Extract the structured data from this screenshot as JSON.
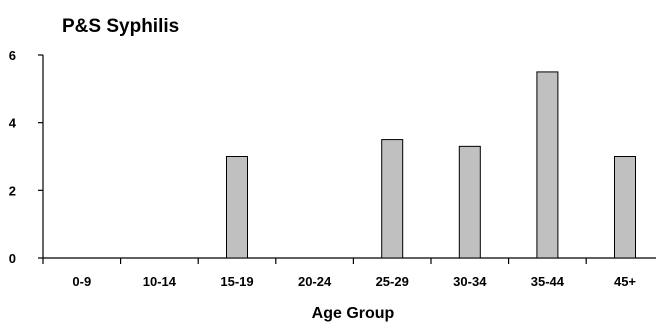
{
  "chart_data": {
    "type": "bar",
    "title": "P&S Syphilis",
    "xlabel": "Age Group",
    "ylabel": "",
    "categories": [
      "0-9",
      "10-14",
      "15-19",
      "20-24",
      "25-29",
      "30-34",
      "35-44",
      "45+"
    ],
    "values": [
      0,
      0,
      3.0,
      0,
      3.5,
      3.3,
      5.5,
      3.0
    ],
    "ylim": [
      0,
      6
    ],
    "yticks": [
      "0",
      "2",
      "4",
      "6"
    ],
    "grid": false,
    "legend": "none",
    "bar_color": "#c0c0c0"
  }
}
